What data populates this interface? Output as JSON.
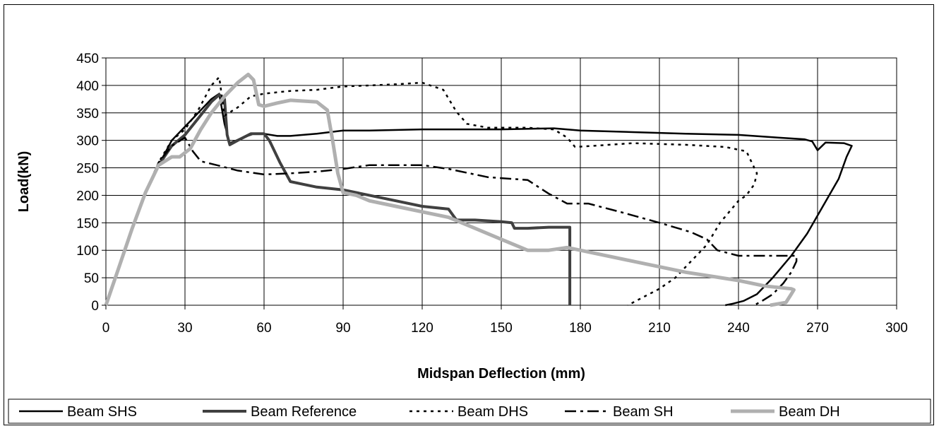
{
  "chart_data": {
    "type": "line",
    "title": "",
    "xlabel": "Midspan Deflection (mm)",
    "ylabel": "Load(kN)",
    "xlim": [
      0,
      300
    ],
    "ylim": [
      0,
      450
    ],
    "xticks": [
      0,
      30,
      60,
      90,
      120,
      150,
      180,
      210,
      240,
      270,
      300
    ],
    "yticks": [
      0,
      50,
      100,
      150,
      200,
      250,
      300,
      350,
      400,
      450
    ],
    "grid": true,
    "legend_position": "bottom",
    "series": [
      {
        "name": "Beam SHS",
        "color": "#000000",
        "dash": "solid",
        "x": [
          0,
          5,
          10,
          15,
          20,
          25,
          30,
          35,
          40,
          43,
          45,
          47,
          52,
          56,
          60,
          65,
          70,
          80,
          90,
          100,
          120,
          150,
          170,
          180,
          200,
          220,
          240,
          255,
          265,
          268,
          270,
          273,
          280,
          283,
          281,
          278,
          272,
          266,
          260,
          253,
          247,
          242,
          238,
          236,
          235
        ],
        "y": [
          0,
          70,
          140,
          205,
          255,
          300,
          325,
          350,
          375,
          385,
          330,
          295,
          305,
          312,
          312,
          308,
          308,
          312,
          318,
          318,
          320,
          320,
          322,
          318,
          315,
          312,
          310,
          305,
          302,
          298,
          282,
          296,
          295,
          290,
          270,
          230,
          180,
          130,
          90,
          50,
          20,
          8,
          3,
          1,
          0
        ]
      },
      {
        "name": "Beam Reference",
        "color": "#404040",
        "dash": "solid",
        "x": [
          0,
          5,
          10,
          15,
          20,
          25,
          30,
          35,
          40,
          43,
          45,
          46,
          47,
          50,
          55,
          60,
          62,
          66,
          70,
          75,
          80,
          90,
          100,
          110,
          120,
          130,
          133,
          140,
          150,
          154,
          155,
          160,
          168,
          175,
          176,
          176
        ],
        "y": [
          0,
          70,
          140,
          205,
          255,
          290,
          310,
          340,
          370,
          383,
          375,
          310,
          292,
          300,
          312,
          312,
          300,
          260,
          225,
          220,
          215,
          210,
          200,
          190,
          180,
          175,
          155,
          155,
          152,
          150,
          140,
          140,
          142,
          142,
          142,
          0
        ]
      },
      {
        "name": "Beam DHS",
        "color": "#000000",
        "dash": "4,6",
        "x": [
          0,
          5,
          10,
          15,
          20,
          25,
          30,
          35,
          40,
          43,
          45,
          50,
          55,
          60,
          70,
          80,
          90,
          100,
          110,
          120,
          128,
          133,
          137,
          145,
          160,
          170,
          175,
          178,
          185,
          200,
          220,
          235,
          243,
          247,
          246,
          243,
          240,
          233,
          228,
          222,
          216,
          210,
          204,
          200,
          198
        ],
        "y": [
          0,
          70,
          140,
          205,
          260,
          300,
          320,
          355,
          400,
          415,
          345,
          360,
          380,
          385,
          390,
          392,
          398,
          400,
          402,
          405,
          392,
          352,
          330,
          323,
          323,
          320,
          305,
          288,
          290,
          295,
          292,
          288,
          280,
          240,
          220,
          200,
          190,
          150,
          110,
          80,
          50,
          30,
          15,
          5,
          0
        ]
      },
      {
        "name": "Beam SH",
        "color": "#000000",
        "dash": "16,6,4,6",
        "x": [
          0,
          5,
          10,
          15,
          20,
          25,
          30,
          33,
          36,
          42,
          50,
          60,
          70,
          80,
          90,
          100,
          110,
          120,
          130,
          145,
          160,
          168,
          175,
          183,
          195,
          210,
          222,
          228,
          232,
          240,
          250,
          262,
          262,
          260,
          257,
          253,
          249,
          246
        ],
        "y": [
          0,
          70,
          140,
          205,
          260,
          290,
          305,
          280,
          262,
          255,
          245,
          238,
          240,
          243,
          248,
          255,
          255,
          255,
          248,
          233,
          228,
          203,
          185,
          185,
          170,
          150,
          133,
          120,
          100,
          90,
          90,
          90,
          80,
          60,
          40,
          20,
          8,
          0
        ]
      },
      {
        "name": "Beam DH",
        "color": "#b0b0b0",
        "dash": "solid",
        "x": [
          0,
          5,
          10,
          15,
          20,
          25,
          28,
          32,
          36,
          40,
          45,
          50,
          54,
          56,
          58,
          60,
          65,
          70,
          80,
          84,
          86,
          88,
          90,
          95,
          100,
          110,
          120,
          130,
          140,
          150,
          160,
          168,
          175,
          180,
          200,
          220,
          240,
          250,
          260,
          261,
          260,
          258,
          252
        ],
        "y": [
          0,
          70,
          140,
          205,
          255,
          270,
          270,
          285,
          320,
          350,
          380,
          405,
          420,
          410,
          365,
          362,
          368,
          373,
          370,
          355,
          300,
          240,
          205,
          200,
          190,
          180,
          170,
          160,
          140,
          120,
          100,
          100,
          105,
          100,
          80,
          60,
          45,
          35,
          30,
          28,
          20,
          5,
          0
        ]
      }
    ]
  }
}
